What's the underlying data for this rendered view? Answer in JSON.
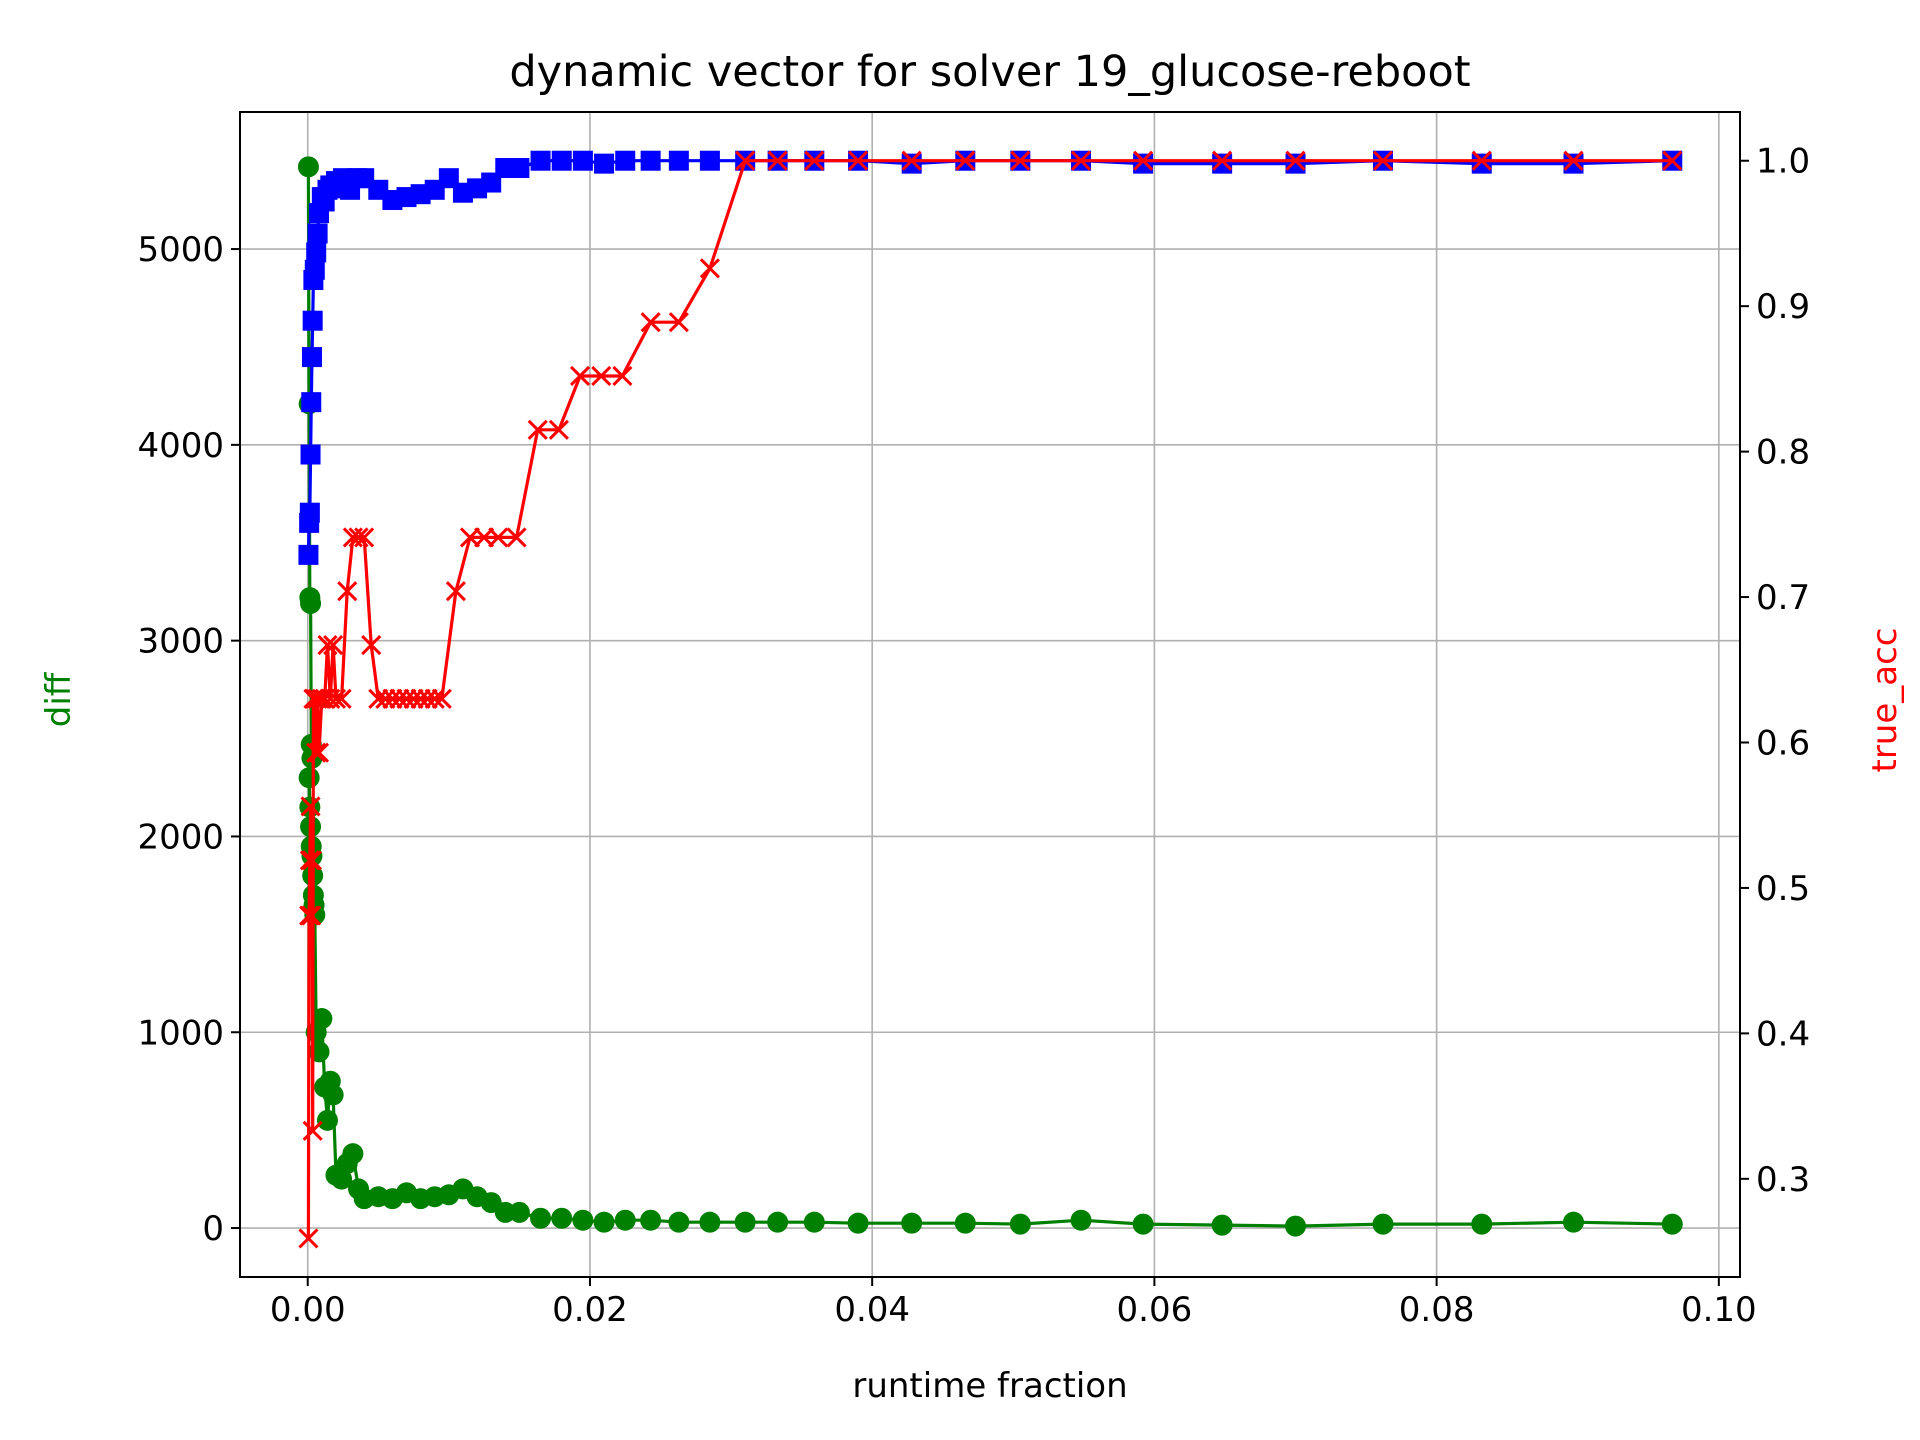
{
  "chart_data": {
    "type": "line",
    "title": "dynamic vector for solver 19_glucose-reboot",
    "xlabel": "runtime fraction",
    "ylabel_left": "diff",
    "ylabel_right": "true_acc",
    "xlim": [
      -0.0048,
      0.1015
    ],
    "ylim_left": [
      -250,
      5700
    ],
    "ylim_right": [
      0.2325,
      1.0335
    ],
    "x_ticks": [
      0.0,
      0.02,
      0.04,
      0.06,
      0.08,
      0.1
    ],
    "x_tick_labels": [
      "0.00",
      "0.02",
      "0.04",
      "0.06",
      "0.08",
      "0.10"
    ],
    "y_left_ticks": [
      0,
      1000,
      2000,
      3000,
      4000,
      5000
    ],
    "y_left_tick_labels": [
      "0",
      "1000",
      "2000",
      "3000",
      "4000",
      "5000"
    ],
    "y_right_ticks": [
      0.3,
      0.4,
      0.5,
      0.6,
      0.7,
      0.8,
      0.9,
      1.0
    ],
    "y_right_tick_labels": [
      "0.3",
      "0.4",
      "0.5",
      "0.6",
      "0.7",
      "0.8",
      "0.9",
      "1.0"
    ],
    "grid": true,
    "colors": {
      "diff": "#008000",
      "blue_series": "#0000ff",
      "true_acc": "#ff0000",
      "ylabel_left": "#008000",
      "ylabel_right": "#ff0000"
    },
    "series": [
      {
        "axis": "left",
        "marker": "circle",
        "color": "#008000",
        "x": [
          5e-05,
          0.0001,
          0.00015,
          0.0002,
          0.00025,
          0.0003,
          0.0001,
          0.00015,
          0.0002,
          0.00025,
          0.0003,
          0.00035,
          0.0004,
          0.00045,
          0.0005,
          0.0006,
          0.0008,
          0.001,
          0.0012,
          0.0014,
          0.0016,
          0.0018,
          0.002,
          0.0024,
          0.0028,
          0.0032,
          0.0036,
          0.004,
          0.005,
          0.006,
          0.007,
          0.008,
          0.009,
          0.01,
          0.011,
          0.012,
          0.013,
          0.014,
          0.015,
          0.0165,
          0.018,
          0.0195,
          0.021,
          0.0225,
          0.0243,
          0.0263,
          0.0285,
          0.031,
          0.0333,
          0.0359,
          0.039,
          0.0428,
          0.0466,
          0.0505,
          0.0548,
          0.0592,
          0.0648,
          0.07,
          0.0762,
          0.0832,
          0.0897,
          0.0967
        ],
        "y": [
          5420,
          4210,
          3220,
          3190,
          2470,
          2400,
          2300,
          2150,
          2050,
          1950,
          1900,
          1800,
          1700,
          1650,
          1600,
          1000,
          900,
          1070,
          720,
          550,
          750,
          680,
          270,
          250,
          330,
          380,
          200,
          150,
          160,
          150,
          180,
          150,
          160,
          170,
          200,
          160,
          130,
          80,
          80,
          50,
          50,
          40,
          30,
          40,
          40,
          30,
          30,
          30,
          30,
          30,
          25,
          25,
          25,
          20,
          40,
          20,
          15,
          10,
          20,
          20,
          30,
          20
        ]
      },
      {
        "axis": "right",
        "marker": "square",
        "color": "#0000ff",
        "x": [
          5e-05,
          0.0001,
          0.00015,
          0.0002,
          0.00025,
          0.0003,
          0.00035,
          0.0004,
          0.0005,
          0.0006,
          0.0007,
          0.0008,
          0.001,
          0.0012,
          0.0014,
          0.0016,
          0.0018,
          0.002,
          0.0025,
          0.003,
          0.0035,
          0.004,
          0.005,
          0.006,
          0.007,
          0.008,
          0.009,
          0.01,
          0.011,
          0.012,
          0.013,
          0.014,
          0.015,
          0.0165,
          0.018,
          0.0195,
          0.021,
          0.0225,
          0.0243,
          0.0263,
          0.0285,
          0.031,
          0.0333,
          0.0359,
          0.039,
          0.0428,
          0.0466,
          0.0505,
          0.0548,
          0.0592,
          0.0648,
          0.07,
          0.0762,
          0.0832,
          0.0897,
          0.0967
        ],
        "y": [
          0.729,
          0.751,
          0.758,
          0.798,
          0.834,
          0.865,
          0.89,
          0.918,
          0.925,
          0.937,
          0.95,
          0.964,
          0.975,
          0.972,
          0.98,
          0.983,
          0.981,
          0.986,
          0.988,
          0.98,
          0.988,
          0.988,
          0.98,
          0.973,
          0.975,
          0.977,
          0.98,
          0.988,
          0.978,
          0.981,
          0.985,
          0.995,
          0.995,
          1.0,
          1.0,
          1.0,
          0.998,
          1.0,
          1.0,
          1.0,
          1.0,
          1.0,
          1.0,
          1.0,
          1.0,
          0.998,
          1.0,
          1.0,
          1.0,
          0.998,
          0.998,
          0.998,
          1.0,
          0.998,
          0.998,
          1.0
        ]
      },
      {
        "axis": "right",
        "marker": "x",
        "color": "#ff0000",
        "x": [
          5e-05,
          0.0001,
          0.00015,
          0.0002,
          0.00025,
          0.0003,
          0.00035,
          0.0004,
          0.0005,
          0.0006,
          0.0007,
          0.0008,
          0.001,
          0.0012,
          0.0014,
          0.0016,
          0.0018,
          0.002,
          0.0024,
          0.0028,
          0.0032,
          0.0036,
          0.004,
          0.0045,
          0.005,
          0.0055,
          0.006,
          0.0065,
          0.007,
          0.0075,
          0.008,
          0.0085,
          0.009,
          0.0095,
          0.0105,
          0.0115,
          0.0125,
          0.0135,
          0.0148,
          0.0163,
          0.0178,
          0.0193,
          0.0208,
          0.0223,
          0.0243,
          0.0263,
          0.0285,
          0.031,
          0.0333,
          0.0359,
          0.039,
          0.0428,
          0.0466,
          0.0505,
          0.0548,
          0.0592,
          0.0648,
          0.07,
          0.0762,
          0.0832,
          0.0897,
          0.0967
        ],
        "y": [
          0.259,
          0.481,
          0.519,
          0.556,
          0.481,
          0.519,
          0.333,
          0.63,
          0.63,
          0.593,
          0.63,
          0.593,
          0.63,
          0.63,
          0.667,
          0.63,
          0.667,
          0.63,
          0.63,
          0.704,
          0.741,
          0.741,
          0.741,
          0.667,
          0.63,
          0.63,
          0.63,
          0.63,
          0.63,
          0.63,
          0.63,
          0.63,
          0.63,
          0.63,
          0.704,
          0.741,
          0.741,
          0.741,
          0.741,
          0.815,
          0.815,
          0.852,
          0.852,
          0.852,
          0.889,
          0.889,
          0.926,
          1.0,
          1.0,
          1.0,
          1.0,
          1.0,
          1.0,
          1.0,
          1.0,
          1.0,
          1.0,
          1.0,
          1.0,
          1.0,
          1.0,
          1.0
        ]
      }
    ]
  }
}
